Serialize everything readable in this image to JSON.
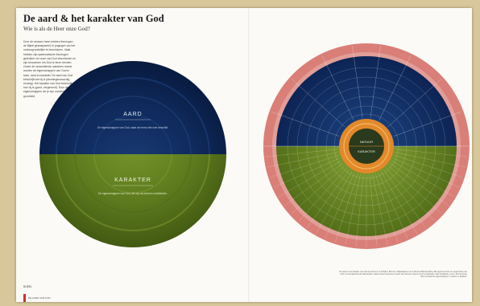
{
  "book": {
    "title": "De aard & het karakter van God",
    "subtitle": "Wie is als de Heer onze God?",
    "intro": "Door de eeuwen heen hebben theologen de Bijbel geanalyseerd in pogingen om het ondoorgrondelijke te beschrijven. Vaak hebben zijn systematische theologen gebruiker om onze van God beschreven en zijn benoemen om God te leren kennen. Onder de verschillende manieren meest worden de eigenschappen van God in twee: aard en karakter. De aard van God beschrijft wie hij is (alomtegenwoordig, eeuwig). Het karakter van God beschrijft hoe hij is (goed, vergevend). Door deze eigenschappen zie je zijn onmetelijke grootheid.",
    "left_diagram": {
      "top_label": "AARD",
      "top_text": "De eigenschappen van God, waar de mens niet over beschikt.",
      "bottom_label": "KARAKTER",
      "bottom_text": "De eigenschappen van God, die wij ook kunnen ontwikkelen."
    },
    "wheel": {
      "center_top": "NATUUR",
      "center_bottom": "KARAKTER"
    },
    "caption": "De aard en het karakter van God beschreven in de Bijbel. Bronnen: Bijbelteksten uit de Nieuwe Bijbelvertaling. Elk segment toont een eigenschap van God met de bijbehorende bijbelteksten waarin deze beschreven wordt. De buitenste ring bevat de verwijzingen naar hoofdstuk en vers. De binnenste cirkel verdeelt de eigenschappen in natuur en karakter.",
    "folio": {
      "number": "BIJBEL",
      "label": "DE AARD VAN GOD"
    },
    "colors": {
      "navy": "#0f2a5c",
      "olive": "#5d7a1e",
      "salmon": "#d97f78",
      "orange": "#e2892b"
    }
  }
}
